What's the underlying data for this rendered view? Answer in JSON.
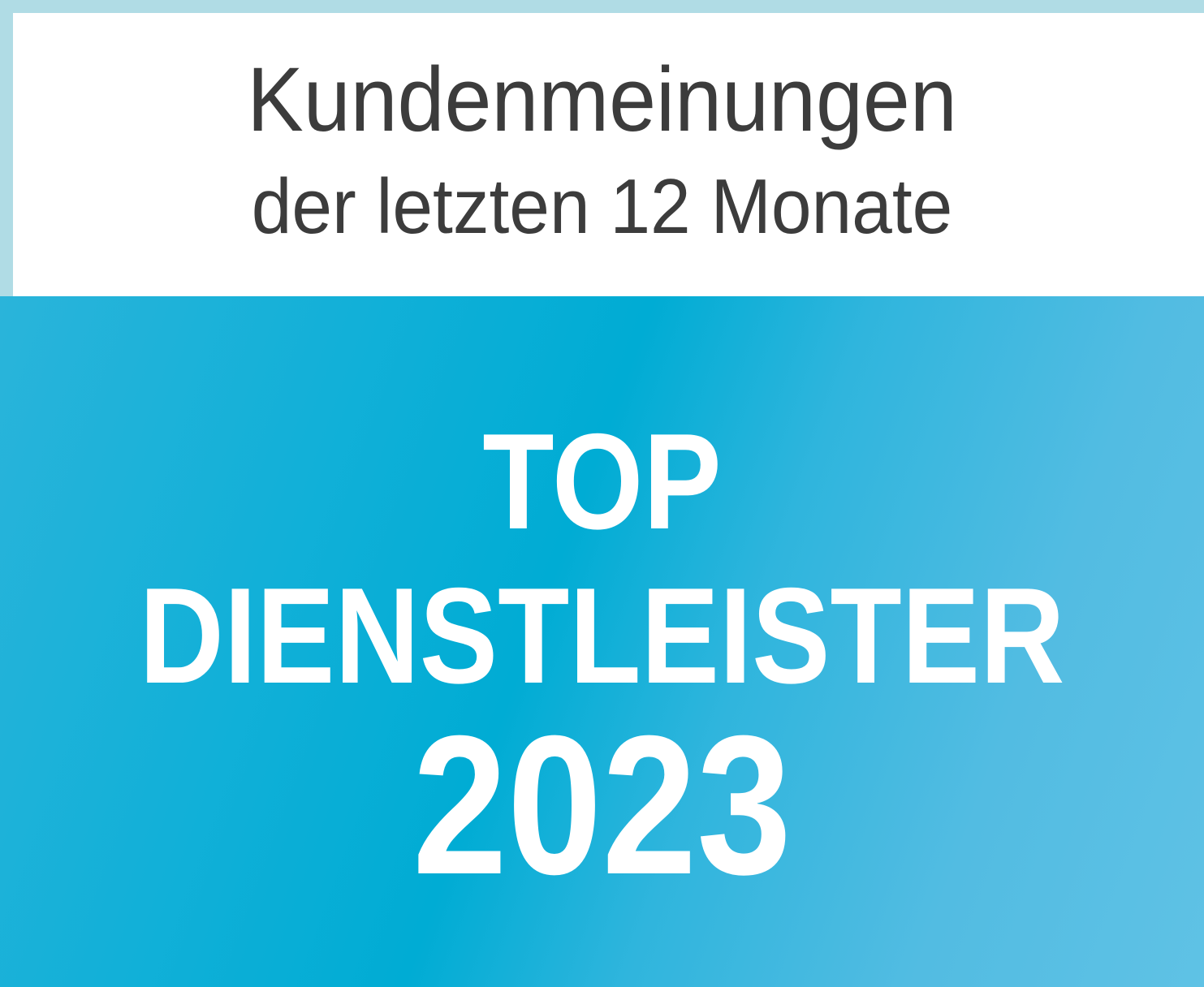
{
  "header": {
    "line1": "Kundenmeinungen",
    "line2": "der letzten 12 Monate"
  },
  "badge": {
    "line1": "TOP",
    "line2": "DIENSTLEISTER",
    "year": "2023"
  },
  "colors": {
    "frame": "#b0dce5",
    "panel": "#ffffff",
    "text_dark": "#3c3c3c",
    "accent_blue": "#00acd4",
    "accent_light": "#5fc2e5"
  }
}
